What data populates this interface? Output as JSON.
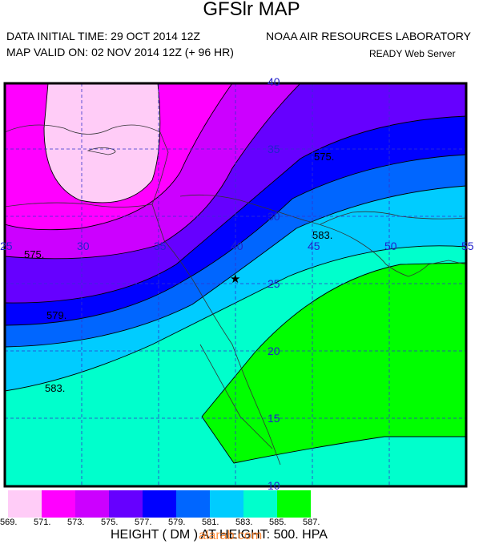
{
  "header": {
    "title": "GFSlr MAP",
    "initial_time": "DATA INITIAL TIME: 29 OCT 2014 12Z",
    "valid_time": "MAP VALID ON: 02 NOV 2014 12Z (+ 96 HR)",
    "organization": "NOAA AIR RESOURCES LABORATORY",
    "server": "READY Web Server"
  },
  "map": {
    "parameter": "500 hPa geopotential height (dam)",
    "longitude_labels": [
      "25",
      "30",
      "35",
      "40",
      "45",
      "50",
      "55"
    ],
    "latitude_labels": [
      "40",
      "35",
      "30",
      "25",
      "20",
      "15",
      "10"
    ],
    "contour_labels": [
      "575.",
      "583.",
      "575.",
      "579.",
      "583."
    ],
    "marker": {
      "symbol": "★",
      "lon": 40.0,
      "lat": 26.0
    }
  },
  "legend": {
    "levels": [
      {
        "value": "569.",
        "color": "#ffccf7"
      },
      {
        "value": "571.",
        "color": "#ff00ff"
      },
      {
        "value": "573.",
        "color": "#cc00ff"
      },
      {
        "value": "575.",
        "color": "#6600ff"
      },
      {
        "value": "577.",
        "color": "#0000ff"
      },
      {
        "value": "579.",
        "color": "#0066ff"
      },
      {
        "value": "581.",
        "color": "#00ccff"
      },
      {
        "value": "583.",
        "color": "#00ffcc"
      },
      {
        "value": "585.",
        "color": "#00ff00"
      },
      {
        "value": "587.",
        "color": ""
      }
    ]
  },
  "footer": {
    "text": "HEIGHT (  DM  ) AT HEIGHT: 500. HPA",
    "watermark": "alarab.com"
  }
}
